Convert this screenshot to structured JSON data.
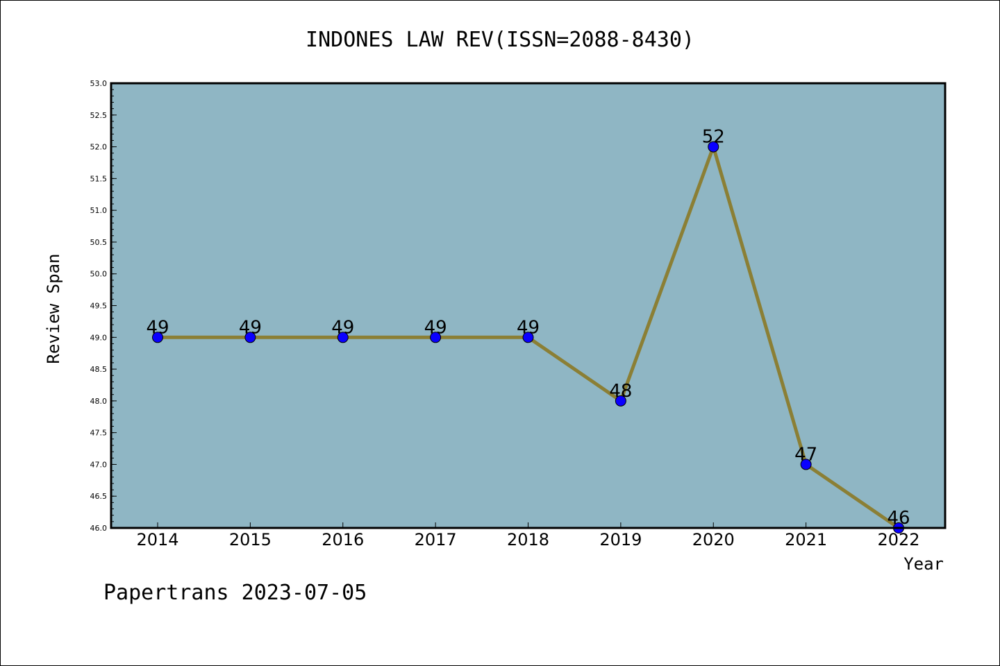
{
  "colors": {
    "plot_background": "#8fb6c4",
    "line": "#8b7f35",
    "marker": "#0a00ff",
    "axis": "#000000"
  },
  "footer": "Papertrans 2023-07-05",
  "chart_data": {
    "type": "line",
    "title": "INDONES LAW REV(ISSN=2088-8430)",
    "xlabel": "Year",
    "ylabel": "Review Span",
    "categories": [
      "2014",
      "2015",
      "2016",
      "2017",
      "2018",
      "2019",
      "2020",
      "2021",
      "2022"
    ],
    "series": [
      {
        "values": [
          49,
          49,
          49,
          49,
          49,
          48,
          52,
          47,
          46
        ]
      }
    ],
    "data_labels": [
      "49",
      "49",
      "49",
      "49",
      "49",
      "48",
      "52",
      "47",
      "46"
    ],
    "ylim": [
      46.0,
      53.0
    ],
    "y_ticks": [
      "46.0",
      "46.5",
      "47.0",
      "47.5",
      "48.0",
      "48.5",
      "49.0",
      "49.5",
      "50.0",
      "50.5",
      "51.0",
      "51.5",
      "52.0",
      "52.5",
      "53.0"
    ],
    "grid": false,
    "legend": "none"
  }
}
